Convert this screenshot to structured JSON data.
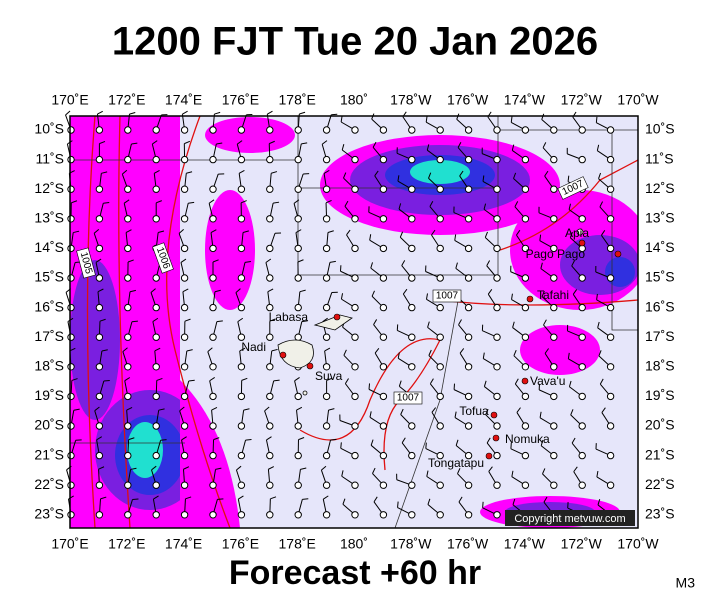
{
  "header": {
    "title": "1200 FJT Tue 20 Jan 2026"
  },
  "map": {
    "longitude_labels": [
      "170˚E",
      "172˚E",
      "174˚E",
      "176˚E",
      "178˚E",
      "180˚",
      "178˚W",
      "176˚W",
      "174˚W",
      "172˚W",
      "170˚W"
    ],
    "latitude_labels": [
      "10˚S",
      "11˚S",
      "12˚S",
      "13˚S",
      "14˚S",
      "15˚S",
      "16˚S",
      "17˚S",
      "18˚S",
      "19˚S",
      "20˚S",
      "21˚S",
      "22˚S",
      "23˚S"
    ],
    "places": [
      "Labasa",
      "Nadi",
      "Suva",
      "Apia",
      "Pago Pago",
      "Tafahi",
      "Vava'u",
      "Tofua",
      "Nomuka",
      "Tongatapu"
    ],
    "isobar_labels": [
      "1007",
      "1006",
      "1005",
      "1007",
      "1007"
    ],
    "copyright": "Copyright metvuw.com"
  },
  "footer": {
    "forecast": "Forecast +60 hr",
    "code": "M3"
  }
}
